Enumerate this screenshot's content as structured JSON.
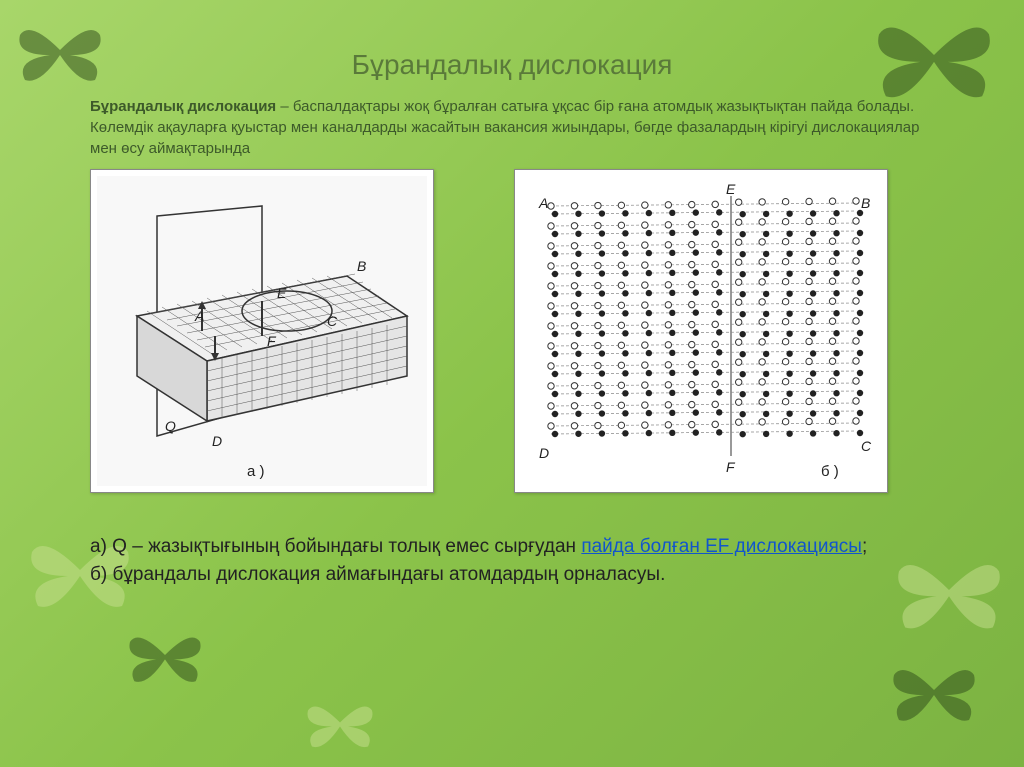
{
  "title": "Бұрандалық  дислокация",
  "intro_bold": "Бұрандалық дислокация",
  "intro_rest": " – баспалдақтары жоқ бұралған сатыға ұқсас бір ғана атомдық жазықтықтан пайда болады. Көлемдік ақауларға қуыстар мен каналдарды жасайтын вакансия жиындары, бөгде фазалардың кірігуі дислокациялар мен өсу аймақтарында",
  "caption_a_prefix": "а) Q – жазықтығының бойындағы толық емес сырғудан ",
  "caption_a_link": "пайда болған EF дислокациясы",
  "caption_a_suffix": ";",
  "caption_b": "б) бұрандалы дислокация аймағындағы атомдардың орналасуы.",
  "fig_a": {
    "labels": {
      "A": "A",
      "B": "B",
      "C": "C",
      "D": "D",
      "E": "E",
      "F": "F",
      "Q": "Q",
      "sub": "a )"
    },
    "grid_color": "#333",
    "bg": "#f8f8f8",
    "label_color": "#222",
    "label_fontsize": 14
  },
  "fig_b": {
    "labels": {
      "A": "A",
      "B": "B",
      "C": "C",
      "D": "D",
      "E": "E",
      "F": "F",
      "sub": "б )"
    },
    "rows": 12,
    "cols": 14,
    "open_color": "#ffffff",
    "open_stroke": "#333",
    "filled_color": "#222",
    "bg": "#ffffff",
    "label_color": "#222",
    "label_fontsize": 14
  },
  "colors": {
    "title": "#5a7a3a",
    "intro": "#3d5a2a",
    "caption": "#222222",
    "link": "#1155cc",
    "bg_gradient": [
      "#a8d66a",
      "#8bc34a",
      "#7cb342"
    ],
    "butterfly_dark": "#2d4a1a",
    "butterfly_light": "#c8e090"
  }
}
